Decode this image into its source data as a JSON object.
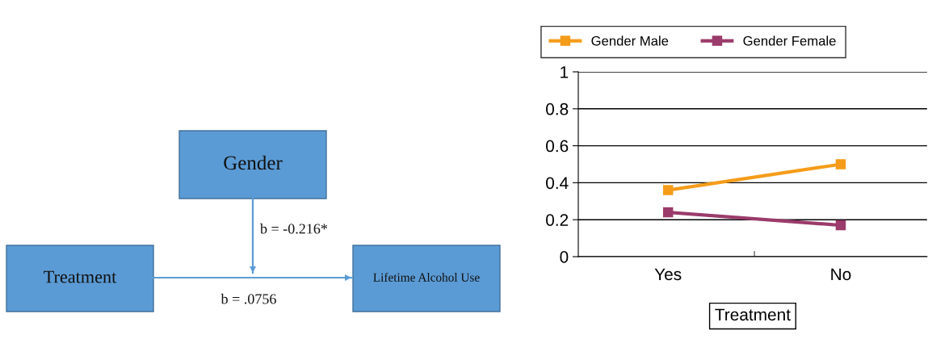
{
  "chart_data": [
    {
      "type": "other",
      "annotations": [
        "Gender",
        "Treatment",
        "Lifetime Alcohol Use",
        "b = -0.216*",
        "b = .0756"
      ]
    },
    {
      "type": "line",
      "xlabel": "Treatment",
      "categories": [
        "Yes",
        "No"
      ],
      "series": [
        {
          "name": "Gender Male",
          "color": "#f59c1a",
          "values": [
            0.36,
            0.5
          ]
        },
        {
          "name": "Gender Female",
          "color": "#9b3b6b",
          "values": [
            0.24,
            0.17
          ]
        }
      ],
      "ylim": [
        0,
        1
      ],
      "yticks": [
        0,
        0.2,
        0.4,
        0.6,
        0.8,
        1
      ],
      "grid": "y",
      "legend": "top",
      "marker": "square",
      "line_style": "solid"
    }
  ]
}
